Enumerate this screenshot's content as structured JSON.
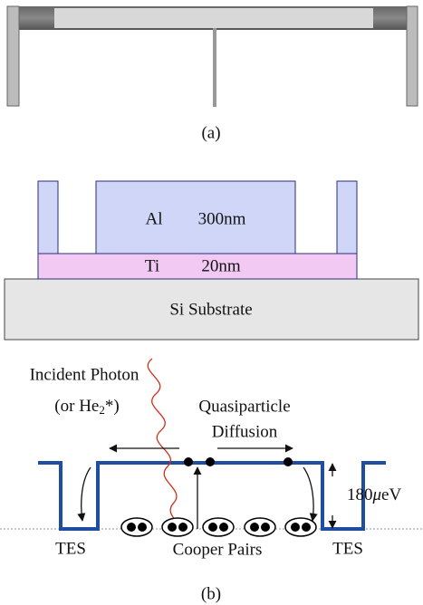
{
  "panel_a": {
    "label": "(a)"
  },
  "panel_b": {
    "label": "(b)",
    "layers": [
      {
        "name": "Al",
        "thickness": "300nm"
      },
      {
        "name": "Ti",
        "thickness": "20nm"
      },
      {
        "name": "Si Substrate"
      }
    ],
    "photon": {
      "line1": "Incident Photon",
      "line2_pre": "(or He",
      "line2_sub": "2",
      "line2_post": "*)"
    },
    "diffusion": {
      "line1": "Quasiparticle",
      "line2": "Diffusion"
    },
    "gap": {
      "number": "180",
      "unit_mu": "μ",
      "unit_rest": "eV"
    },
    "tes_left": "TES",
    "tes_right": "TES",
    "cooper": "Cooper Pairs"
  }
}
